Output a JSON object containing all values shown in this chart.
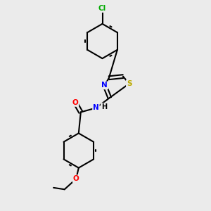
{
  "background_color": "#ebebeb",
  "bond_color": "#000000",
  "atom_colors": {
    "Cl": "#00aa00",
    "N": "#0000ff",
    "S": "#bbaa00",
    "O": "#ff0000",
    "C": "#000000",
    "H": "#000000"
  },
  "figsize": [
    3.0,
    3.0
  ],
  "dpi": 100
}
